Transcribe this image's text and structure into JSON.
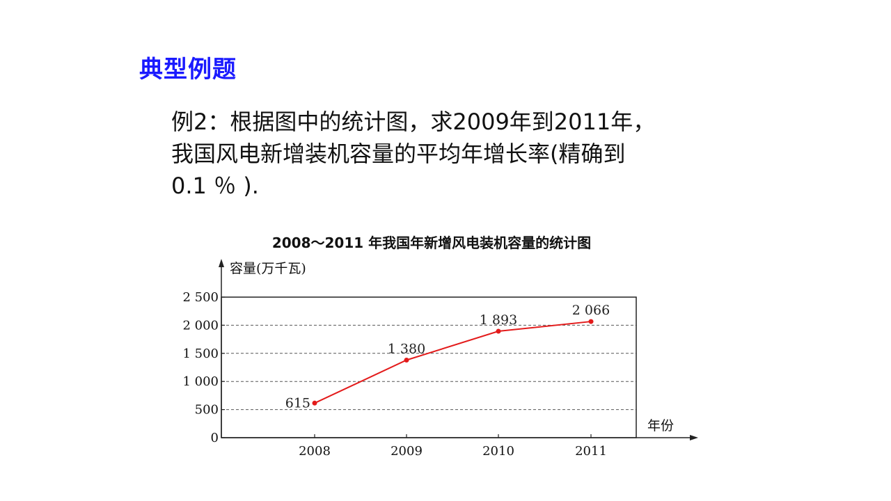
{
  "slide": {
    "heading": "典型例题",
    "problem_lines": [
      "例2：根据图中的统计图，求2009年到2011年，",
      "我国风电新增装机容量的平均年增长率(精确到",
      "0.1 ％ )."
    ]
  },
  "colors": {
    "heading": "#1a1aff",
    "series_line": "#e31b1b",
    "grid": "#555555"
  },
  "chart_data": {
    "type": "line",
    "title": "2008～2011 年我国年新增风电装机容量的统计图",
    "ylabel": "容量(万千瓦)",
    "xlabel": "年份",
    "categories": [
      "2008",
      "2009",
      "2010",
      "2011"
    ],
    "series": [
      {
        "values": [
          615,
          1380,
          1893,
          2066
        ]
      }
    ],
    "data_labels": [
      "615",
      "1 380",
      "1 893",
      "2 066"
    ],
    "yticks": [
      0,
      500,
      1000,
      1500,
      2000,
      2500
    ],
    "ytick_labels": [
      "0",
      "500",
      "1 000",
      "1 500",
      "2 000",
      "2 500"
    ],
    "ylim": [
      0,
      2500
    ],
    "grid": "horizontal-dashed",
    "legend": "none"
  }
}
